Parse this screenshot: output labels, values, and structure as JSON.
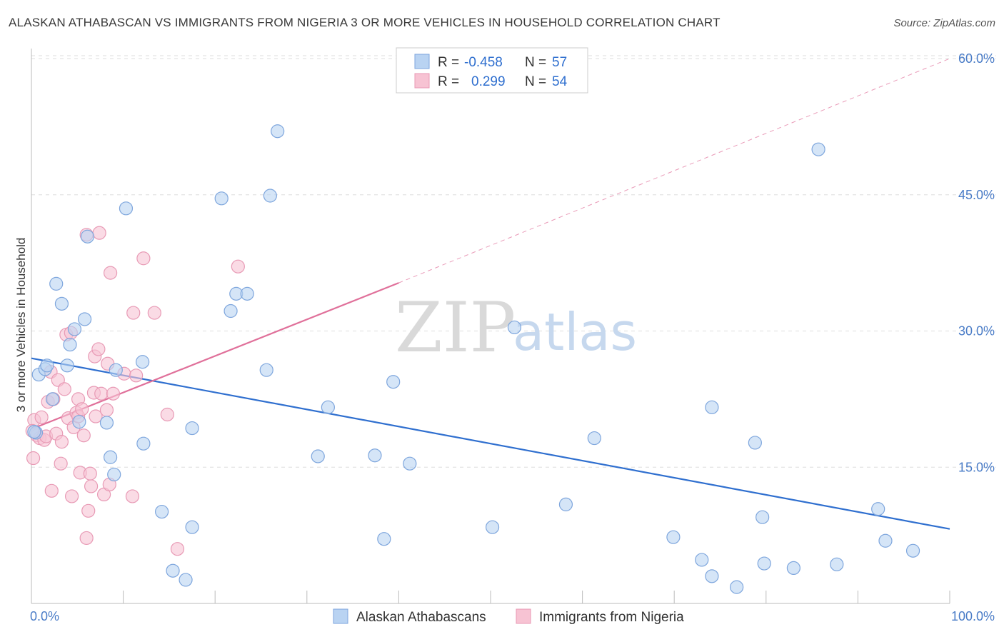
{
  "title": "ALASKAN ATHABASCAN VS IMMIGRANTS FROM NIGERIA 3 OR MORE VEHICLES IN HOUSEHOLD CORRELATION CHART",
  "source": "Source: ZipAtlas.com",
  "watermark": {
    "zip": "ZIP",
    "atlas": "atlas"
  },
  "legend": {
    "rows": [
      {
        "r_label": "R =",
        "r_value": "-0.458",
        "n_label": "N =",
        "n_value": "57"
      },
      {
        "r_label": "R =",
        "r_value": "0.299",
        "n_label": "N =",
        "n_value": "54"
      }
    ]
  },
  "colors": {
    "blue": "#2f6fcf",
    "blue_fill": "#b9d3f2",
    "pink": "#e0709a",
    "pink_fill": "#f7c3d3",
    "grid": "#dddddd",
    "axis_text": "#4a7cc7"
  },
  "chart_data": {
    "type": "scatter",
    "title": "ALASKAN ATHABASCAN VS IMMIGRANTS FROM NIGERIA 3 OR MORE VEHICLES IN HOUSEHOLD CORRELATION CHART",
    "xlabel": "",
    "ylabel": "3 or more Vehicles in Household",
    "xlim": [
      0,
      100
    ],
    "ylim": [
      0,
      60
    ],
    "x_tick_labels": [
      "0.0%",
      "100.0%"
    ],
    "y_ticks": [
      15,
      30,
      45,
      60
    ],
    "y_tick_labels": [
      "15.0%",
      "30.0%",
      "45.0%",
      "60.0%"
    ],
    "grid": true,
    "legend_position": "top-center",
    "series": [
      {
        "name": "Alaskan Athabascans",
        "color": "#2f6fcf",
        "points": [
          [
            0.5,
            18.8
          ],
          [
            0.8,
            25.2
          ],
          [
            1.5,
            25.8
          ],
          [
            1.7,
            26.2
          ],
          [
            2.3,
            22.5
          ],
          [
            2.7,
            35.2
          ],
          [
            3.3,
            33.0
          ],
          [
            3.9,
            26.2
          ],
          [
            4.2,
            28.5
          ],
          [
            4.7,
            30.2
          ],
          [
            5.2,
            20.0
          ],
          [
            5.8,
            31.3
          ],
          [
            6.1,
            40.4
          ],
          [
            8.2,
            19.9
          ],
          [
            8.6,
            16.1
          ],
          [
            9.0,
            14.2
          ],
          [
            9.2,
            25.7
          ],
          [
            10.3,
            43.5
          ],
          [
            12.1,
            26.6
          ],
          [
            12.2,
            17.6
          ],
          [
            14.2,
            10.1
          ],
          [
            15.4,
            3.6
          ],
          [
            16.8,
            2.6
          ],
          [
            17.5,
            8.4
          ],
          [
            17.5,
            19.3
          ],
          [
            20.7,
            44.6
          ],
          [
            21.7,
            32.2
          ],
          [
            22.3,
            34.1
          ],
          [
            23.5,
            34.1
          ],
          [
            25.6,
            25.7
          ],
          [
            26.0,
            44.9
          ],
          [
            26.8,
            52.0
          ],
          [
            31.2,
            16.2
          ],
          [
            32.3,
            21.6
          ],
          [
            37.4,
            16.3
          ],
          [
            38.4,
            7.1
          ],
          [
            39.4,
            24.4
          ],
          [
            41.2,
            15.4
          ],
          [
            50.2,
            8.4
          ],
          [
            52.6,
            30.4
          ],
          [
            58.2,
            10.9
          ],
          [
            61.3,
            18.2
          ],
          [
            69.9,
            7.3
          ],
          [
            73.0,
            4.8
          ],
          [
            74.1,
            3.0
          ],
          [
            74.1,
            21.6
          ],
          [
            76.8,
            1.8
          ],
          [
            78.8,
            17.7
          ],
          [
            79.6,
            9.5
          ],
          [
            79.8,
            4.4
          ],
          [
            83.0,
            3.9
          ],
          [
            85.7,
            50.0
          ],
          [
            87.7,
            4.3
          ],
          [
            92.2,
            10.4
          ],
          [
            93.0,
            6.9
          ],
          [
            96.0,
            5.8
          ],
          [
            0.3,
            18.9
          ]
        ],
        "trend": {
          "x": [
            0,
            100
          ],
          "y": [
            27.0,
            8.2
          ]
        }
      },
      {
        "name": "Immigrants from Nigeria",
        "color": "#e0709a",
        "points": [
          [
            0.2,
            16.0
          ],
          [
            0.3,
            20.2
          ],
          [
            0.6,
            18.5
          ],
          [
            0.9,
            18.2
          ],
          [
            1.1,
            20.5
          ],
          [
            1.4,
            18.0
          ],
          [
            1.6,
            18.4
          ],
          [
            1.8,
            22.2
          ],
          [
            2.1,
            25.5
          ],
          [
            2.2,
            12.4
          ],
          [
            2.4,
            22.5
          ],
          [
            2.7,
            18.7
          ],
          [
            2.9,
            24.6
          ],
          [
            3.2,
            15.4
          ],
          [
            3.3,
            17.8
          ],
          [
            3.6,
            23.6
          ],
          [
            3.8,
            29.6
          ],
          [
            4.0,
            20.4
          ],
          [
            4.3,
            29.8
          ],
          [
            4.4,
            11.8
          ],
          [
            4.6,
            19.4
          ],
          [
            4.9,
            21.0
          ],
          [
            5.1,
            22.5
          ],
          [
            5.1,
            20.6
          ],
          [
            5.3,
            14.4
          ],
          [
            5.5,
            21.4
          ],
          [
            5.7,
            18.5
          ],
          [
            6.0,
            40.6
          ],
          [
            6.0,
            7.2
          ],
          [
            6.2,
            10.2
          ],
          [
            6.4,
            14.3
          ],
          [
            6.5,
            12.9
          ],
          [
            6.8,
            23.2
          ],
          [
            6.9,
            27.2
          ],
          [
            7.0,
            20.6
          ],
          [
            7.3,
            28.0
          ],
          [
            7.4,
            40.8
          ],
          [
            7.6,
            23.1
          ],
          [
            7.9,
            12.0
          ],
          [
            8.2,
            21.3
          ],
          [
            8.3,
            26.4
          ],
          [
            8.5,
            13.1
          ],
          [
            8.6,
            36.4
          ],
          [
            8.9,
            23.1
          ],
          [
            10.1,
            25.3
          ],
          [
            11.0,
            11.8
          ],
          [
            11.1,
            32.0
          ],
          [
            11.4,
            25.1
          ],
          [
            12.2,
            38.0
          ],
          [
            13.4,
            32.0
          ],
          [
            14.8,
            20.8
          ],
          [
            15.9,
            6.0
          ],
          [
            22.5,
            37.1
          ],
          [
            0.1,
            19.0
          ]
        ],
        "trend": {
          "x": [
            0,
            40
          ],
          "y": [
            19.2,
            35.3
          ]
        },
        "trend_dashed_extension": {
          "x": [
            40,
            100
          ],
          "y": [
            35.3,
            60.0
          ]
        }
      }
    ]
  },
  "bottom_legend": [
    {
      "label": "Alaskan Athabascans"
    },
    {
      "label": "Immigrants from Nigeria"
    }
  ]
}
